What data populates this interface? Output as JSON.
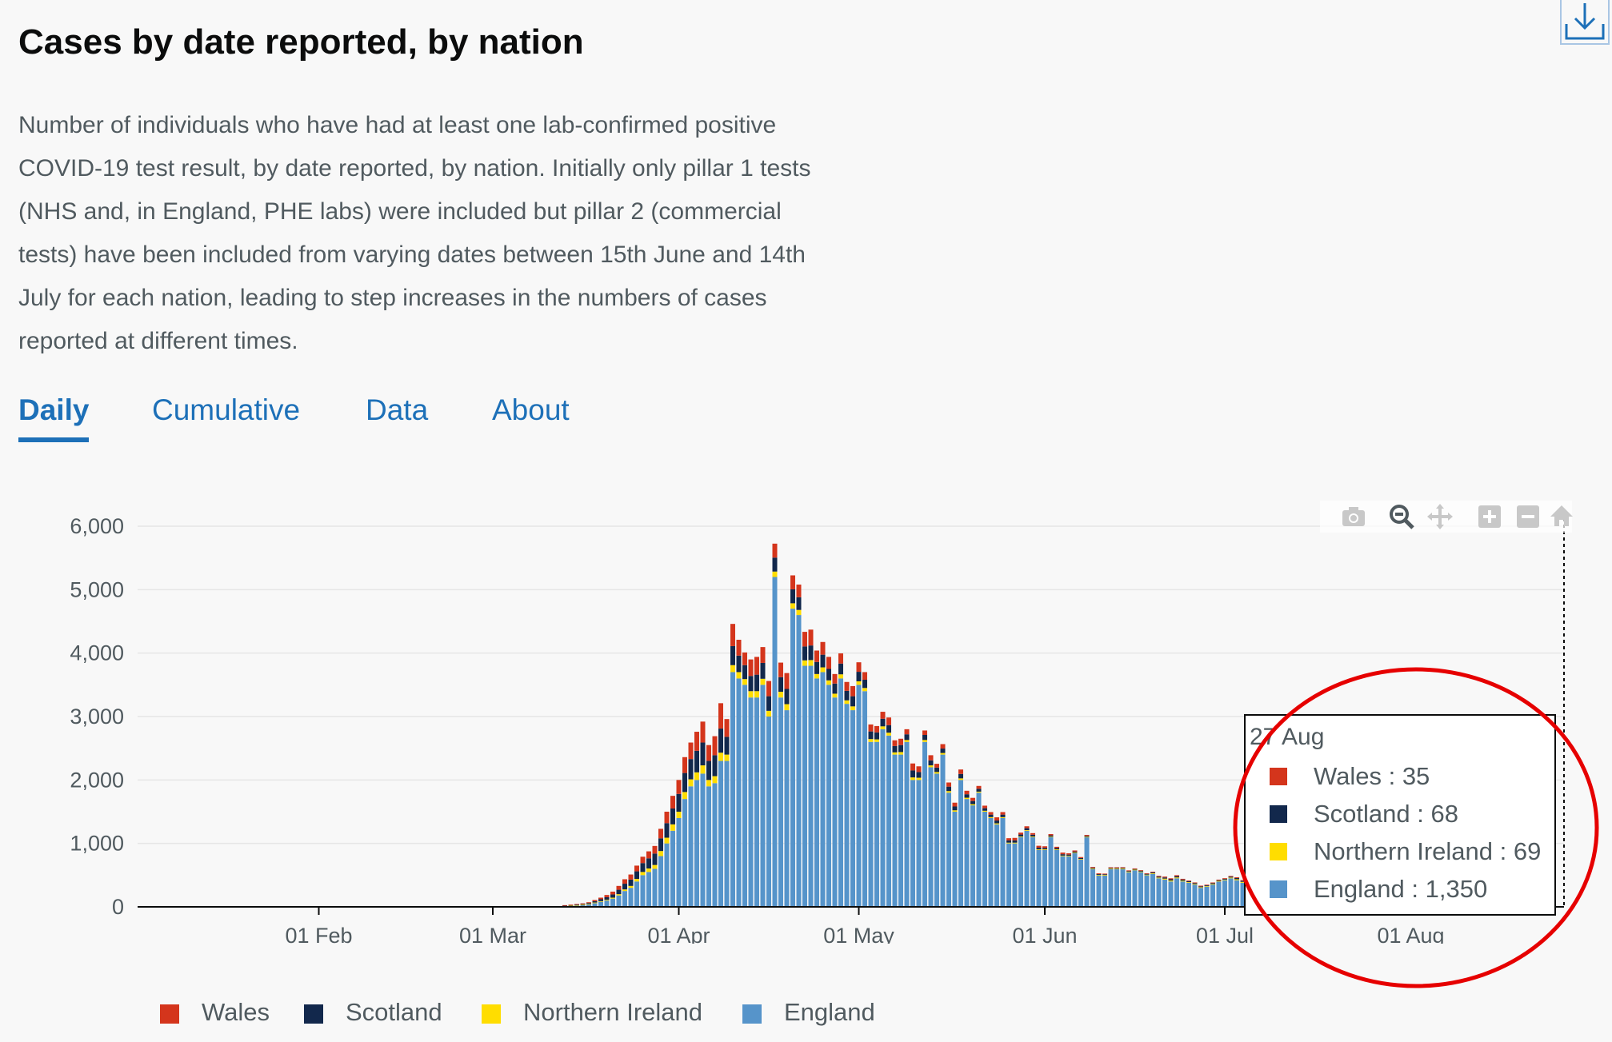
{
  "page": {
    "title": "Cases by date reported, by nation",
    "description": "Number of individuals who have had at least one lab-confirmed positive COVID-19 test result, by date reported, by nation. Initially only pillar 1 tests (NHS and, in England, PHE labs) were included but pillar 2 (commercial tests) have been included from varying dates between 15th June and 14th July for each nation, leading to step increases in the numbers of cases reported at different times."
  },
  "tabs": [
    {
      "label": "Daily",
      "active": true
    },
    {
      "label": "Cumulative",
      "active": false
    },
    {
      "label": "Data",
      "active": false
    },
    {
      "label": "About",
      "active": false
    }
  ],
  "toolbar": {
    "icons": [
      "download-icon",
      "camera-icon",
      "zoom-icon",
      "pan-icon",
      "zoom-in-icon",
      "zoom-out-icon",
      "reset-axes-icon"
    ]
  },
  "tooltip": {
    "date": "27 Aug",
    "rows": [
      {
        "label": "Wales  : 35",
        "color": "#d4351c"
      },
      {
        "label": "Scotland  : 68",
        "color": "#12284c"
      },
      {
        "label": "Northern Ireland  : 69",
        "color": "#ffdd00"
      },
      {
        "label": "England  : 1,350",
        "color": "#5694ca"
      }
    ]
  },
  "legend": [
    {
      "label": "Wales",
      "color": "#d4351c"
    },
    {
      "label": "Scotland",
      "color": "#12284c"
    },
    {
      "label": "Northern Ireland",
      "color": "#ffdd00"
    },
    {
      "label": "England",
      "color": "#5694ca"
    }
  ],
  "chart_data": {
    "type": "bar",
    "stacked": true,
    "x_start": "2020-01-01",
    "x_ticks": [
      "01 Feb",
      "01 Mar",
      "01 Apr",
      "01 May",
      "01 Jun",
      "01 Jul",
      "01 Aug"
    ],
    "y_ticks": [
      "0",
      "1,000",
      "2,000",
      "3,000",
      "4,000",
      "5,000",
      "6,000"
    ],
    "ylim": [
      0,
      6000
    ],
    "grid": true,
    "legend_position": "bottom",
    "highlight_date": "27 Aug",
    "series": [
      {
        "name": "Wales",
        "color": "#d4351c",
        "values": [
          0,
          0,
          0,
          0,
          0,
          0,
          0,
          0,
          0,
          0,
          0,
          0,
          0,
          0,
          0,
          0,
          0,
          0,
          0,
          0,
          0,
          0,
          0,
          0,
          0,
          0,
          0,
          0,
          0,
          0,
          0,
          0,
          0,
          0,
          0,
          0,
          0,
          0,
          0,
          0,
          0,
          0,
          0,
          0,
          0,
          0,
          0,
          0,
          0,
          0,
          0,
          0,
          0,
          0,
          0,
          0,
          0,
          0,
          0,
          0,
          0,
          0,
          0,
          0,
          0,
          0,
          0,
          0,
          0,
          0,
          0,
          0,
          5,
          6,
          8,
          10,
          12,
          20,
          25,
          35,
          45,
          60,
          70,
          80,
          90,
          100,
          110,
          120,
          150,
          180,
          200,
          220,
          250,
          260,
          300,
          330,
          250,
          300,
          400,
          280,
          350,
          250,
          200,
          260,
          280,
          250,
          240,
          220,
          230,
          250,
          220,
          200,
          230,
          250,
          180,
          200,
          190,
          150,
          160,
          140,
          160,
          150,
          120,
          110,
          100,
          110,
          120,
          90,
          100,
          80,
          110,
          90,
          70,
          80,
          60,
          70,
          65,
          60,
          70,
          55,
          50,
          45,
          40,
          40,
          50,
          40,
          35,
          40,
          30,
          30,
          25,
          30,
          25,
          20,
          20,
          25,
          20,
          18,
          15,
          15,
          12,
          12,
          10,
          10,
          10,
          10,
          10,
          10,
          10,
          10,
          10,
          12,
          14,
          15,
          15,
          12,
          10,
          10,
          10,
          8,
          10,
          8,
          9,
          10,
          12,
          10,
          12,
          15,
          20,
          25,
          30,
          28,
          25,
          35
        ]
      },
      {
        "name": "Scotland",
        "color": "#12284c",
        "values": [
          0,
          0,
          0,
          0,
          0,
          0,
          0,
          0,
          0,
          0,
          0,
          0,
          0,
          0,
          0,
          0,
          0,
          0,
          0,
          0,
          0,
          0,
          0,
          0,
          0,
          0,
          0,
          0,
          0,
          0,
          0,
          0,
          0,
          0,
          0,
          0,
          0,
          0,
          0,
          0,
          0,
          0,
          0,
          0,
          0,
          0,
          0,
          0,
          0,
          0,
          0,
          0,
          0,
          0,
          0,
          0,
          0,
          0,
          0,
          0,
          0,
          0,
          0,
          0,
          0,
          0,
          0,
          0,
          0,
          0,
          0,
          0,
          5,
          6,
          8,
          10,
          15,
          20,
          30,
          40,
          50,
          70,
          90,
          100,
          120,
          140,
          160,
          180,
          200,
          230,
          250,
          280,
          300,
          320,
          340,
          360,
          300,
          330,
          380,
          280,
          300,
          260,
          220,
          240,
          260,
          250,
          230,
          220,
          230,
          240,
          220,
          200,
          220,
          230,
          190,
          200,
          180,
          160,
          170,
          150,
          160,
          150,
          130,
          120,
          110,
          120,
          120,
          100,
          110,
          90,
          110,
          90,
          80,
          80,
          70,
          70,
          70,
          60,
          70,
          55,
          50,
          45,
          40,
          40,
          45,
          40,
          35,
          35,
          30,
          30,
          28,
          25,
          22,
          20,
          20,
          22,
          18,
          16,
          15,
          14,
          12,
          12,
          10,
          10,
          10,
          10,
          10,
          10,
          12,
          12,
          14,
          15,
          18,
          20,
          20,
          18,
          15,
          15,
          14,
          12,
          14,
          12,
          13,
          15,
          20,
          18,
          20,
          25,
          30,
          40,
          50,
          55,
          60,
          68
        ]
      },
      {
        "name": "Northern Ireland",
        "color": "#ffdd00",
        "values": [
          0,
          0,
          0,
          0,
          0,
          0,
          0,
          0,
          0,
          0,
          0,
          0,
          0,
          0,
          0,
          0,
          0,
          0,
          0,
          0,
          0,
          0,
          0,
          0,
          0,
          0,
          0,
          0,
          0,
          0,
          0,
          0,
          0,
          0,
          0,
          0,
          0,
          0,
          0,
          0,
          0,
          0,
          0,
          0,
          0,
          0,
          0,
          0,
          0,
          0,
          0,
          0,
          0,
          0,
          0,
          0,
          0,
          0,
          0,
          0,
          0,
          0,
          0,
          0,
          0,
          0,
          0,
          0,
          0,
          0,
          0,
          0,
          2,
          3,
          4,
          5,
          6,
          8,
          10,
          12,
          15,
          20,
          25,
          30,
          40,
          50,
          55,
          60,
          80,
          90,
          100,
          100,
          110,
          110,
          120,
          130,
          100,
          110,
          130,
          100,
          110,
          100,
          90,
          100,
          100,
          95,
          90,
          85,
          90,
          95,
          85,
          80,
          85,
          90,
          70,
          75,
          70,
          60,
          65,
          55,
          60,
          55,
          50,
          45,
          40,
          45,
          45,
          35,
          40,
          30,
          40,
          35,
          30,
          30,
          25,
          25,
          25,
          22,
          25,
          20,
          18,
          16,
          15,
          14,
          16,
          14,
          12,
          12,
          10,
          10,
          9,
          8,
          8,
          7,
          7,
          8,
          6,
          5,
          5,
          5,
          4,
          4,
          4,
          4,
          4,
          5,
          5,
          6,
          7,
          8,
          10,
          12,
          15,
          15,
          14,
          12,
          10,
          10,
          10,
          9,
          10,
          9,
          10,
          12,
          15,
          14,
          15,
          18,
          20,
          25,
          30,
          40,
          50,
          69
        ]
      },
      {
        "name": "England",
        "color": "#5694ca",
        "values": [
          0,
          0,
          0,
          0,
          0,
          0,
          0,
          0,
          0,
          0,
          0,
          0,
          0,
          0,
          0,
          0,
          0,
          0,
          0,
          0,
          0,
          0,
          0,
          0,
          0,
          0,
          0,
          0,
          0,
          0,
          0,
          0,
          2,
          1,
          3,
          0,
          0,
          0,
          2,
          0,
          0,
          0,
          0,
          3,
          0,
          2,
          0,
          0,
          0,
          0,
          0,
          0,
          0,
          0,
          0,
          0,
          0,
          0,
          0,
          0,
          0,
          0,
          0,
          0,
          2,
          3,
          4,
          5,
          6,
          8,
          10,
          12,
          15,
          20,
          25,
          30,
          40,
          60,
          80,
          100,
          130,
          180,
          250,
          300,
          400,
          500,
          550,
          600,
          800,
          1000,
          1200,
          1400,
          1700,
          1900,
          2000,
          2100,
          1900,
          1950,
          2300,
          2300,
          3700,
          3600,
          3500,
          3300,
          3300,
          3500,
          3000,
          5200,
          3300,
          3100,
          4700,
          4600,
          3800,
          3800,
          3600,
          3700,
          3500,
          3300,
          3600,
          3200,
          3100,
          3500,
          3400,
          2600,
          2600,
          2800,
          2700,
          2400,
          2400,
          2600,
          2000,
          2000,
          2600,
          2200,
          2100,
          2400,
          1800,
          1500,
          2000,
          1700,
          1600,
          1800,
          1500,
          1400,
          1300,
          1400,
          1000,
          1000,
          1100,
          1200,
          1100,
          900,
          900,
          1100,
          900,
          800,
          800,
          850,
          750,
          1100,
          600,
          500,
          500,
          600,
          600,
          600,
          550,
          580,
          550,
          500,
          520,
          450,
          430,
          400,
          450,
          400,
          380,
          350,
          300,
          320,
          350,
          400,
          420,
          450,
          420,
          380,
          400,
          450,
          380,
          300,
          320,
          350,
          330,
          300,
          250,
          280,
          260,
          240,
          250,
          300,
          280,
          350,
          400,
          500,
          600,
          700,
          800,
          900,
          1000,
          1100,
          1200,
          1300,
          1350
        ]
      }
    ]
  }
}
